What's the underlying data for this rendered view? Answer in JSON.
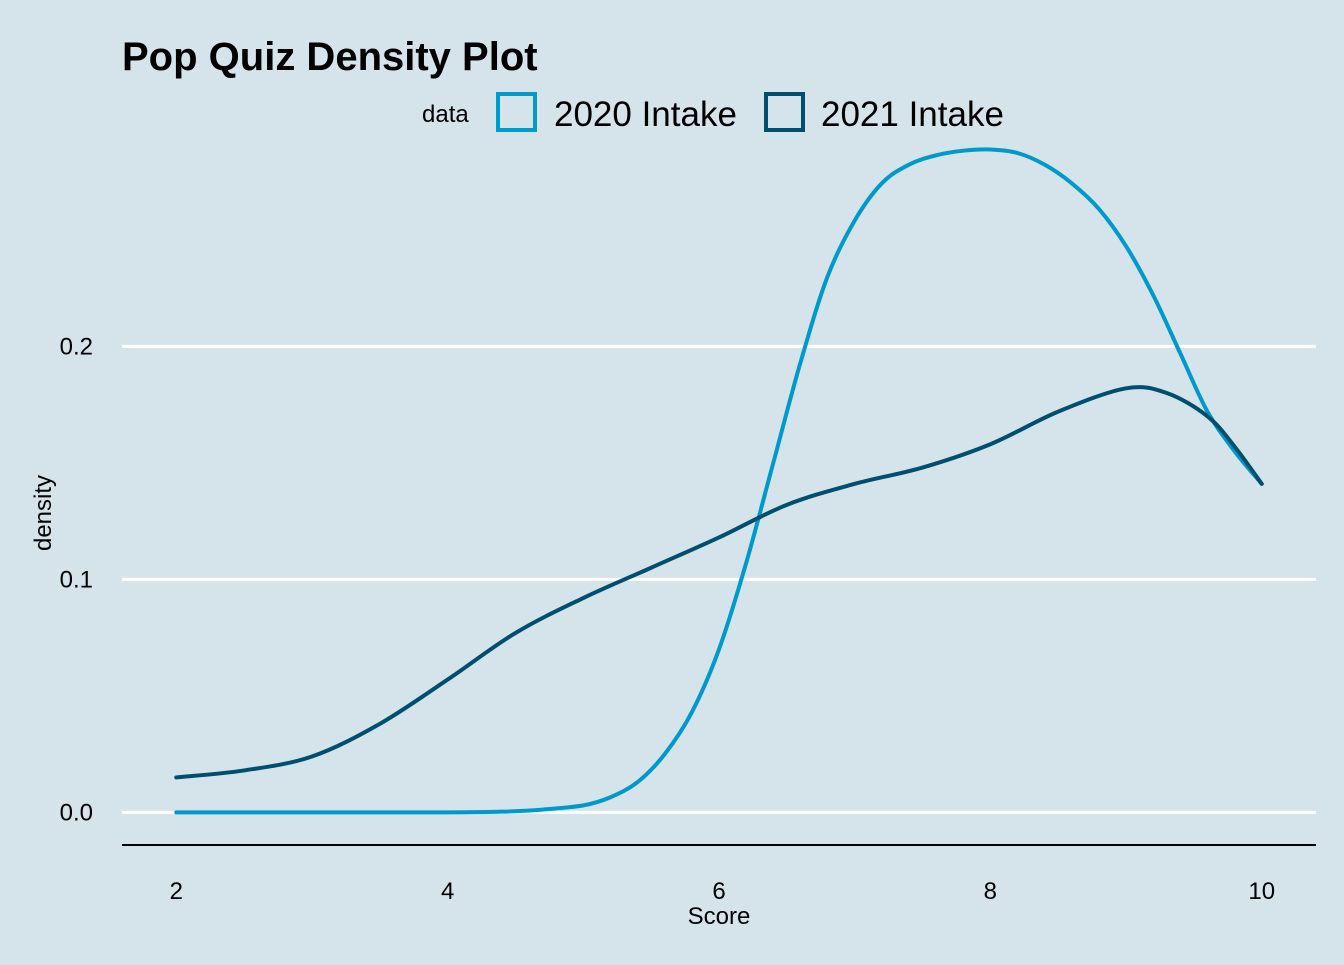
{
  "chart_data": {
    "type": "line",
    "title": "Pop Quiz Density Plot",
    "xlabel": "Score",
    "ylabel": "density",
    "xlim": [
      1.6,
      10.4
    ],
    "ylim": [
      -0.014,
      0.28
    ],
    "x_ticks": [
      2,
      4,
      6,
      8,
      10
    ],
    "x_tick_labels": [
      "2",
      "4",
      "6",
      "8",
      "10"
    ],
    "y_ticks": [
      0,
      0.1,
      0.2
    ],
    "y_tick_labels": [
      "0.0",
      "0.1",
      "0.2"
    ],
    "grid": "horizontal major lines only",
    "legend": {
      "title": "data",
      "position": "top",
      "entries": [
        "2020 Intake",
        "2021 Intake"
      ]
    },
    "series": [
      {
        "name": "2020 Intake",
        "color": "#0099cc",
        "x": [
          2,
          2.5,
          3,
          3.5,
          4,
          4.4,
          4.7,
          5,
          5.2,
          5.4,
          5.6,
          5.8,
          6,
          6.2,
          6.4,
          6.6,
          6.8,
          7,
          7.2,
          7.4,
          7.6,
          7.8,
          8,
          8.2,
          8.4,
          8.6,
          8.8,
          9,
          9.2,
          9.4,
          9.6,
          9.8,
          10
        ],
        "y": [
          0,
          0,
          0,
          0,
          0,
          0.0003,
          0.0012,
          0.003,
          0.0065,
          0.013,
          0.025,
          0.043,
          0.07,
          0.107,
          0.15,
          0.193,
          0.23,
          0.254,
          0.27,
          0.278,
          0.282,
          0.284,
          0.2845,
          0.283,
          0.278,
          0.27,
          0.259,
          0.243,
          0.222,
          0.197,
          0.172,
          0.155,
          0.141
        ]
      },
      {
        "name": "2021 Intake",
        "color": "#004f6e",
        "x": [
          2,
          2.5,
          3,
          3.5,
          4,
          4.5,
          5,
          5.5,
          6,
          6.5,
          7,
          7.5,
          8,
          8.5,
          9,
          9.3,
          9.6,
          9.8,
          10
        ],
        "y": [
          0.015,
          0.018,
          0.024,
          0.038,
          0.057,
          0.077,
          0.092,
          0.105,
          0.118,
          0.132,
          0.141,
          0.148,
          0.158,
          0.172,
          0.182,
          0.18,
          0.17,
          0.157,
          0.141
        ]
      }
    ]
  }
}
